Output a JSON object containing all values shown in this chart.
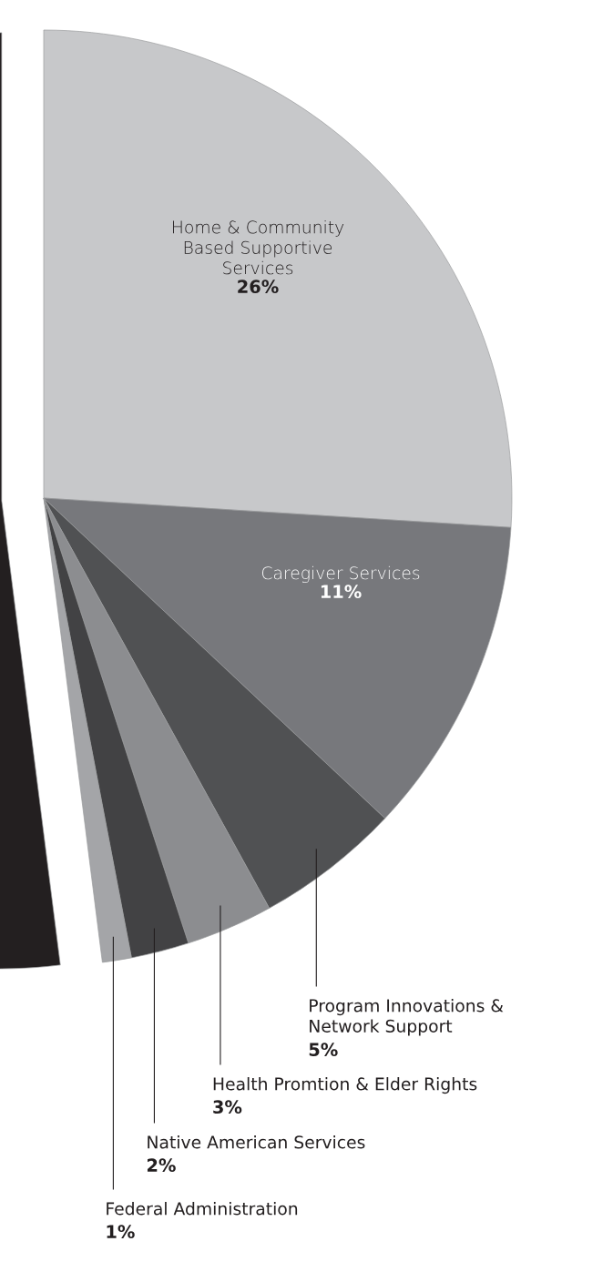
{
  "chart_data": {
    "type": "pie",
    "categories": [
      "Home & Community\nBased Supportive\nServices",
      "Caregiver Services",
      "Program Innovations &\nNetwork Support",
      "Health Promtion & Elder Rights",
      "Native American Services",
      "Federal Administration",
      null
    ],
    "values": [
      26,
      11,
      5,
      3,
      2,
      1,
      52
    ],
    "colors": [
      "#c7c8ca",
      "#77787c",
      "#505153",
      "#8c8d90",
      "#424244",
      "#a4a5a8",
      "#231f20"
    ],
    "value_labels": [
      "26%",
      "11%",
      "5%",
      "3%",
      "2%",
      "1%",
      null
    ]
  }
}
